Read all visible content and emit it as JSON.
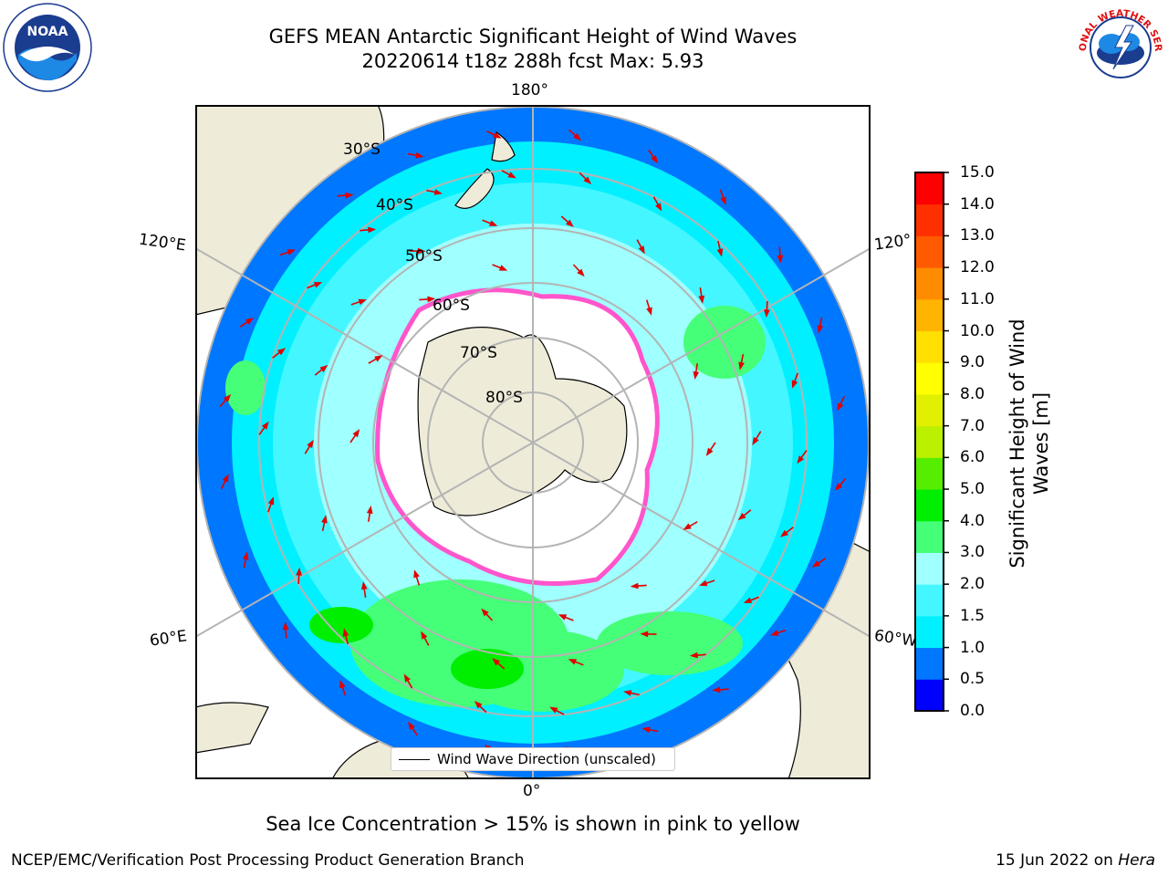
{
  "header": {
    "title_line1": "GEFS MEAN Antarctic Significant Height of Wind Waves",
    "title_line2": "20220614 t18z 288h fcst   Max: 5.93"
  },
  "logos": {
    "left": "noaa-logo",
    "left_text": "NOAA",
    "right": "national-weather-service-logo",
    "right_text": "NATIONAL WEATHER SERVICE"
  },
  "map": {
    "projection": "south-polar-stereographic",
    "longitude_labels": {
      "top": "180°",
      "bottom": "0°",
      "upper_left": "120°E",
      "upper_right": "120°",
      "lower_left": "60°E",
      "lower_right": "60°W"
    },
    "latitude_labels": [
      "30°S",
      "40°S",
      "50°S",
      "60°S",
      "70°S",
      "80°S"
    ],
    "legend_label": "Wind Wave Direction (unscaled)",
    "colors": {
      "land": "#eeecd9",
      "coastline": "#000000",
      "grid": "#b4b4b4",
      "arrows": "#e00000",
      "sea_ice": "#ff66cc"
    }
  },
  "colorbar": {
    "label": "Significant Height of Wind Waves [m]",
    "ticks": [
      "0.0",
      "0.5",
      "1.0",
      "1.5",
      "2.0",
      "3.0",
      "4.0",
      "5.0",
      "6.0",
      "7.0",
      "8.0",
      "9.0",
      "10.0",
      "11.0",
      "12.0",
      "13.0",
      "14.0",
      "15.0"
    ],
    "colors": [
      "#0000ff",
      "#0077ff",
      "#00f0ff",
      "#44f6ff",
      "#a0ffff",
      "#44ff77",
      "#00ee00",
      "#55ee00",
      "#bbf000",
      "#e0f000",
      "#ffff00",
      "#ffe000",
      "#ffb400",
      "#ff8c00",
      "#ff5a00",
      "#ff3000",
      "#ff0000"
    ]
  },
  "subtitle": "Sea Ice Concentration > 15% is shown in pink to yellow",
  "footer": {
    "left": "NCEP/EMC/Verification Post Processing Product Generation Branch",
    "right_prefix": "15 Jun 2022 on ",
    "right_host": "Hera"
  }
}
